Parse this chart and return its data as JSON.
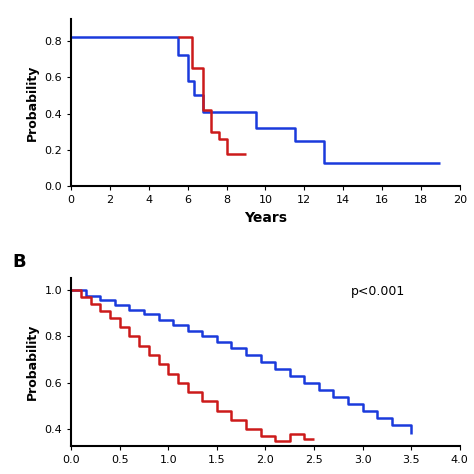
{
  "panel_A": {
    "blue_x": [
      0.0,
      5.5,
      5.5,
      6.0,
      6.0,
      6.3,
      6.3,
      6.8,
      6.8,
      7.2,
      7.2,
      9.5,
      9.5,
      11.5,
      11.5,
      12.5,
      12.5,
      13.0,
      13.0,
      14.8,
      14.8,
      19.0,
      19.0
    ],
    "blue_y": [
      0.82,
      0.82,
      0.72,
      0.72,
      0.58,
      0.58,
      0.5,
      0.5,
      0.41,
      0.41,
      0.41,
      0.41,
      0.32,
      0.32,
      0.25,
      0.25,
      0.25,
      0.25,
      0.13,
      0.13,
      0.13,
      0.13,
      0.13
    ],
    "red_x": [
      5.5,
      6.2,
      6.2,
      6.8,
      6.8,
      7.2,
      7.2,
      7.6,
      7.6,
      8.0,
      8.0,
      9.0,
      9.0
    ],
    "red_y": [
      0.82,
      0.82,
      0.65,
      0.65,
      0.42,
      0.42,
      0.3,
      0.3,
      0.26,
      0.26,
      0.18,
      0.18,
      0.18
    ],
    "xlabel": "Years",
    "ylabel": "Probability",
    "xlim": [
      0,
      20
    ],
    "ylim": [
      0.0,
      0.92
    ],
    "xticks": [
      0,
      2,
      4,
      6,
      8,
      10,
      12,
      14,
      16,
      18,
      20
    ],
    "yticks": [
      0.0,
      0.2,
      0.4,
      0.6,
      0.8
    ]
  },
  "panel_B": {
    "blue_x": [
      0.0,
      0.15,
      0.15,
      0.3,
      0.3,
      0.45,
      0.45,
      0.6,
      0.6,
      0.75,
      0.75,
      0.9,
      0.9,
      1.05,
      1.05,
      1.2,
      1.2,
      1.35,
      1.35,
      1.5,
      1.5,
      1.65,
      1.65,
      1.8,
      1.8,
      1.95,
      1.95,
      2.1,
      2.1,
      2.25,
      2.25,
      2.4,
      2.4,
      2.55,
      2.55,
      2.7,
      2.7,
      2.85,
      2.85,
      3.0,
      3.0,
      3.15,
      3.15,
      3.3,
      3.3,
      3.5,
      3.5
    ],
    "blue_y": [
      1.0,
      1.0,
      0.975,
      0.975,
      0.955,
      0.955,
      0.935,
      0.935,
      0.915,
      0.915,
      0.895,
      0.895,
      0.87,
      0.87,
      0.85,
      0.85,
      0.825,
      0.825,
      0.8,
      0.8,
      0.775,
      0.775,
      0.75,
      0.75,
      0.72,
      0.72,
      0.69,
      0.69,
      0.66,
      0.66,
      0.63,
      0.63,
      0.6,
      0.6,
      0.57,
      0.57,
      0.54,
      0.54,
      0.51,
      0.51,
      0.48,
      0.48,
      0.45,
      0.45,
      0.42,
      0.42,
      0.38
    ],
    "red_x": [
      0.0,
      0.1,
      0.1,
      0.2,
      0.2,
      0.3,
      0.3,
      0.4,
      0.4,
      0.5,
      0.5,
      0.6,
      0.6,
      0.7,
      0.7,
      0.8,
      0.8,
      0.9,
      0.9,
      1.0,
      1.0,
      1.1,
      1.1,
      1.2,
      1.2,
      1.35,
      1.35,
      1.5,
      1.5,
      1.65,
      1.65,
      1.8,
      1.8,
      1.95,
      1.95,
      2.1,
      2.1,
      2.25,
      2.25,
      2.4,
      2.4,
      2.5,
      2.5
    ],
    "red_y": [
      1.0,
      1.0,
      0.97,
      0.97,
      0.94,
      0.94,
      0.91,
      0.91,
      0.88,
      0.88,
      0.84,
      0.84,
      0.8,
      0.8,
      0.76,
      0.76,
      0.72,
      0.72,
      0.68,
      0.68,
      0.64,
      0.64,
      0.6,
      0.6,
      0.56,
      0.56,
      0.52,
      0.52,
      0.48,
      0.48,
      0.44,
      0.44,
      0.4,
      0.4,
      0.37,
      0.37,
      0.35,
      0.35,
      0.38,
      0.38,
      0.36,
      0.36,
      0.36
    ],
    "panel_label": "B",
    "annotation": "p<0.001",
    "ylabel": "Probability",
    "xlim": [
      0,
      4
    ],
    "ylim": [
      0.33,
      1.05
    ],
    "yticks": [
      0.4,
      0.6,
      0.8,
      1.0
    ]
  },
  "blue_color": "#1a3adc",
  "red_color": "#cc1a1a",
  "linewidth": 1.8,
  "background_color": "#ffffff"
}
